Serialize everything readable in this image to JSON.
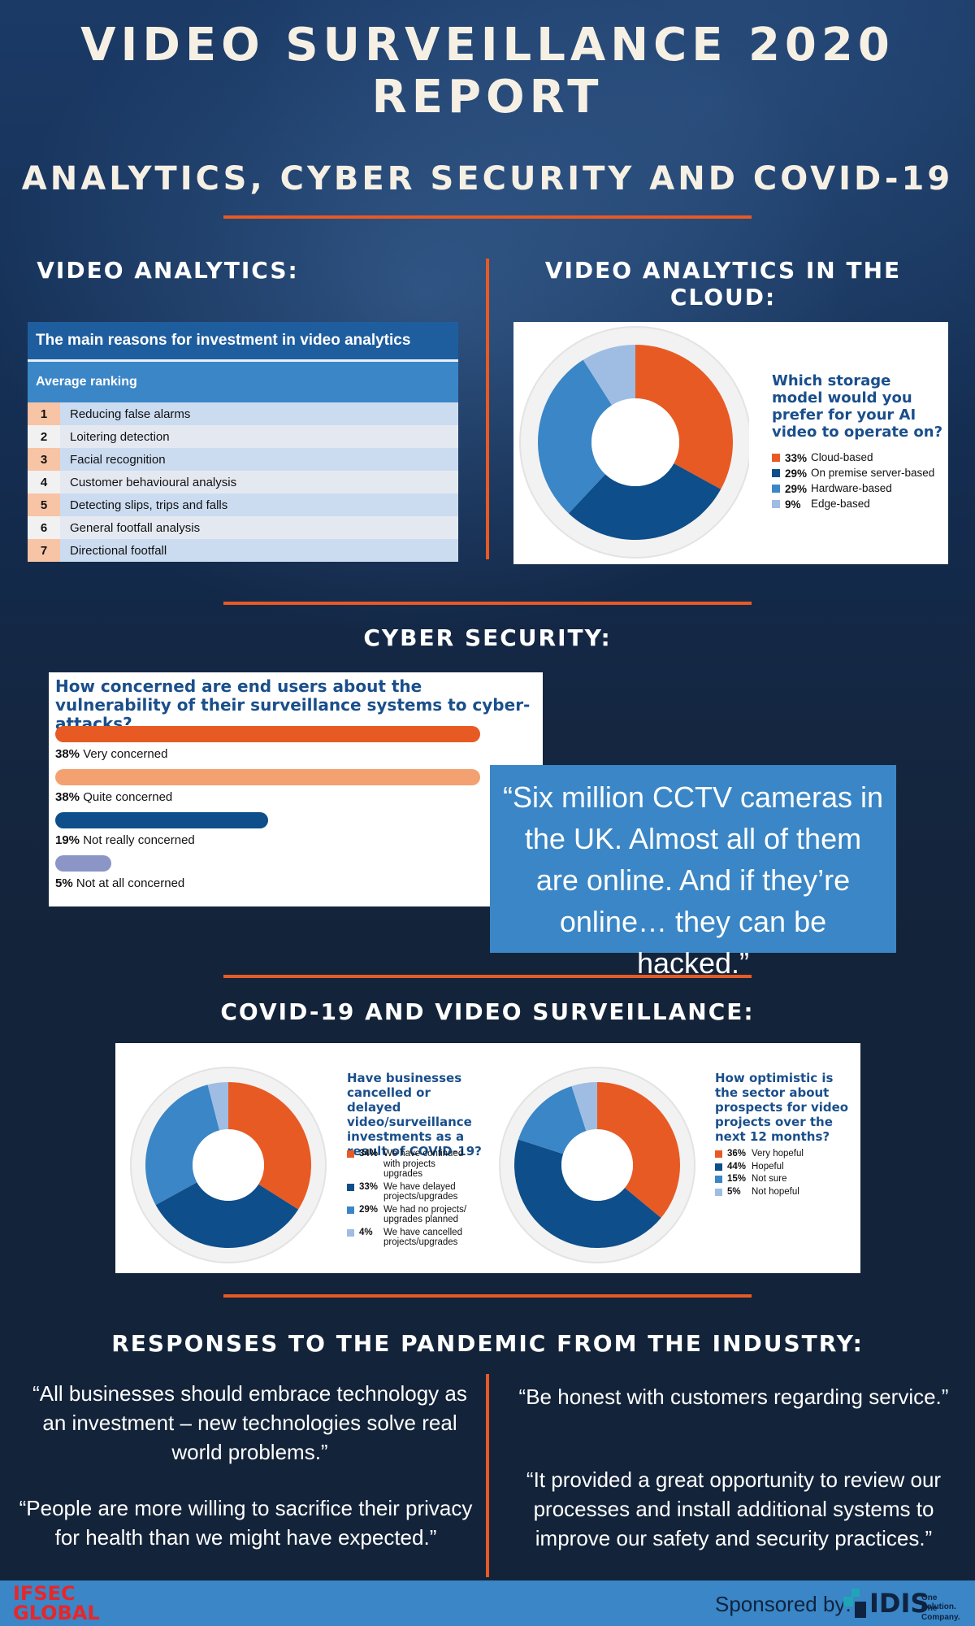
{
  "header": {
    "title_line1": "VIDEO SURVEILLANCE 2020",
    "title_line2": "REPORT",
    "subtitle": "ANALYTICS, CYBER SECURITY AND COVID-19"
  },
  "sections": {
    "video_analytics": "VIDEO ANALYTICS:",
    "cloud": "VIDEO ANALYTICS IN THE CLOUD:",
    "cyber": "CYBER SECURITY:",
    "covid": "COVID-19 AND VIDEO SURVEILLANCE:",
    "responses": "RESPONSES TO THE PANDEMIC FROM THE INDUSTRY:"
  },
  "colors": {
    "orange": "#e85a24",
    "dark_blue": "#0e4e8a",
    "mid_blue": "#3a86c6",
    "light_blue": "#9fbde3",
    "peach": "#f4a171",
    "slate": "#8b96c6"
  },
  "chart_data": [
    {
      "type": "table",
      "title": "The main reasons for investment in video analytics",
      "subtitle": "Average ranking",
      "rows": [
        {
          "rank": "1",
          "label": "Reducing false alarms"
        },
        {
          "rank": "2",
          "label": "Loitering detection"
        },
        {
          "rank": "3",
          "label": "Facial recognition"
        },
        {
          "rank": "4",
          "label": "Customer behavioural analysis"
        },
        {
          "rank": "5",
          "label": "Detecting slips, trips and falls"
        },
        {
          "rank": "6",
          "label": "General footfall analysis"
        },
        {
          "rank": "7",
          "label": "Directional footfall"
        }
      ]
    },
    {
      "type": "pie",
      "title": "Which storage model would you prefer for your AI video to operate on?",
      "slices": [
        {
          "pct": "33%",
          "value": 33,
          "label": "Cloud-based",
          "color": "#e85a24"
        },
        {
          "pct": "29%",
          "value": 29,
          "label": "On premise server-based",
          "color": "#0e4e8a"
        },
        {
          "pct": "29%",
          "value": 29,
          "label": "Hardware-based",
          "color": "#3a86c6"
        },
        {
          "pct": "9%",
          "value": 9,
          "label": "Edge-based",
          "color": "#9fbde3"
        }
      ]
    },
    {
      "type": "bar",
      "title": "How concerned are end users about the vulnerability of their surveillance systems to cyber-attacks?",
      "bars": [
        {
          "pct": "38%",
          "value": 38,
          "label": "Very concerned",
          "color": "#e85a24"
        },
        {
          "pct": "38%",
          "value": 38,
          "label": "Quite concerned",
          "color": "#f4a171"
        },
        {
          "pct": "19%",
          "value": 19,
          "label": "Not really concerned",
          "color": "#0e4e8a"
        },
        {
          "pct": "5%",
          "value": 5,
          "label": "Not at all concerned",
          "color": "#8b96c6"
        }
      ]
    },
    {
      "type": "pie",
      "title": "Have businesses cancelled or delayed video/surveillance investments as a result of COVID-19?",
      "slices": [
        {
          "pct": "34%",
          "value": 34,
          "label": "We have continued with projects upgrades",
          "color": "#e85a24"
        },
        {
          "pct": "33%",
          "value": 33,
          "label": "We have delayed projects/upgrades",
          "color": "#0e4e8a"
        },
        {
          "pct": "29%",
          "value": 29,
          "label": "We had no projects/ upgrades planned",
          "color": "#3a86c6"
        },
        {
          "pct": "4%",
          "value": 4,
          "label": "We have cancelled projects/upgrades",
          "color": "#9fbde3"
        }
      ]
    },
    {
      "type": "pie",
      "title": "How optimistic is the sector about prospects for video projects over the next 12 months?",
      "slices": [
        {
          "pct": "36%",
          "value": 36,
          "label": "Very hopeful",
          "color": "#e85a24"
        },
        {
          "pct": "44%",
          "value": 44,
          "label": "Hopeful",
          "color": "#0e4e8a"
        },
        {
          "pct": "15%",
          "value": 15,
          "label": "Not sure",
          "color": "#3a86c6"
        },
        {
          "pct": "5%",
          "value": 5,
          "label": "Not hopeful",
          "color": "#9fbde3"
        }
      ]
    }
  ],
  "quotes": {
    "cctv": "“Six million CCTV cameras in the UK. Almost all of them are online. And if they’re online… they can be hacked.”",
    "q1": "“All businesses should embrace technology as an investment – new technologies solve real world problems.”",
    "q2": "“People are more willing to sacrifice their privacy for health than we might have expected.”",
    "q3": "“Be honest with customers regarding service.”",
    "q4": "“It provided a great opportunity to review our processes and install additional systems to improve our safety and security practices.”"
  },
  "footer": {
    "logo_line1": "IFSEC",
    "logo_line2": "GLOBAL",
    "sponsored": "Sponsored by:",
    "sponsor_name": "IDIS",
    "sponsor_tag1": "One Solution.",
    "sponsor_tag2": "One Company."
  }
}
